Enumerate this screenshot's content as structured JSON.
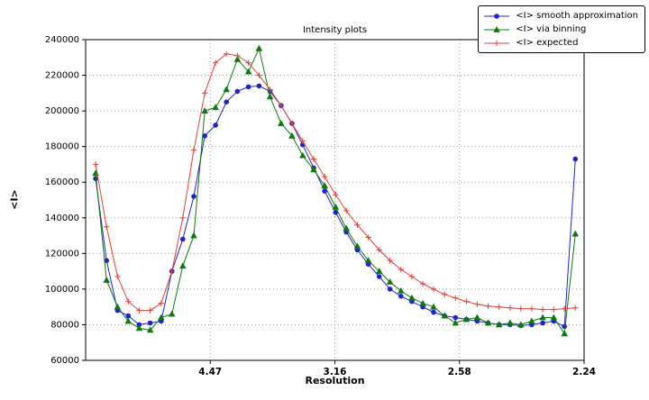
{
  "chart_data": {
    "type": "line",
    "title": "Intensity plots",
    "xlabel": "Resolution",
    "ylabel": "<I>",
    "grid": true,
    "legend_position": "upper right",
    "x_axis": {
      "range": [
        0,
        0.2
      ],
      "unit": "1/d^2 (resolution shown as d in angstroms)",
      "tick_positions": [
        0.05,
        0.1,
        0.15,
        0.2
      ],
      "tick_labels": [
        "4.47",
        "3.16",
        "2.58",
        "2.24"
      ]
    },
    "y_axis": {
      "range": [
        60000,
        240000
      ],
      "ticks": [
        60000,
        80000,
        100000,
        120000,
        140000,
        160000,
        180000,
        200000,
        220000,
        240000
      ]
    },
    "x": [
      0.004,
      0.0084,
      0.0128,
      0.0171,
      0.0215,
      0.0259,
      0.0303,
      0.0346,
      0.039,
      0.0434,
      0.0478,
      0.0521,
      0.0565,
      0.0609,
      0.0653,
      0.0696,
      0.074,
      0.0784,
      0.0828,
      0.0871,
      0.0915,
      0.0959,
      0.1003,
      0.1046,
      0.109,
      0.1134,
      0.1178,
      0.1221,
      0.1265,
      0.1309,
      0.1353,
      0.1396,
      0.144,
      0.1484,
      0.1528,
      0.1571,
      0.1615,
      0.1659,
      0.1703,
      0.1746,
      0.179,
      0.1834,
      0.1878,
      0.1921,
      0.1965
    ],
    "series": [
      {
        "name": "<I> smooth approximation",
        "color": "#2222cc",
        "marker": "circle",
        "values": [
          162000,
          116000,
          88000,
          85000,
          80000,
          81000,
          82000,
          110000,
          128000,
          152000,
          186000,
          192000,
          205000,
          211000,
          213500,
          214000,
          211000,
          203000,
          193000,
          181000,
          168000,
          155000,
          143000,
          132000,
          122000,
          114000,
          107000,
          100000,
          96000,
          93000,
          90000,
          87000,
          85000,
          84000,
          83000,
          82000,
          81000,
          80000,
          80000,
          79500,
          80000,
          81000,
          82000,
          79000,
          173000
        ]
      },
      {
        "name": "<I> via binning",
        "color": "#0c7a0c",
        "marker": "triangle",
        "values": [
          165000,
          105000,
          90000,
          82000,
          78000,
          77000,
          84000,
          86000,
          113000,
          130000,
          200000,
          202000,
          212000,
          229000,
          222000,
          235000,
          208000,
          193000,
          186000,
          175000,
          167000,
          158000,
          146000,
          134000,
          124000,
          116000,
          110000,
          104000,
          99000,
          95000,
          92000,
          90000,
          85000,
          81000,
          83000,
          84000,
          81000,
          80000,
          81000,
          80000,
          82000,
          84000,
          84000,
          75000,
          131000
        ]
      },
      {
        "name": "<I> expected",
        "color": "#e04038",
        "marker": "plus",
        "values": [
          170000,
          135000,
          107000,
          93000,
          88000,
          88000,
          92000,
          110000,
          140000,
          178000,
          210000,
          227000,
          232000,
          231000,
          227000,
          220000,
          212000,
          203000,
          193000,
          183000,
          173000,
          163000,
          153000,
          144000,
          136000,
          129000,
          122000,
          116000,
          111000,
          107000,
          103000,
          100000,
          97000,
          95000,
          93000,
          91500,
          90500,
          90000,
          89500,
          89000,
          89000,
          88500,
          88500,
          89000,
          89500
        ]
      }
    ]
  }
}
